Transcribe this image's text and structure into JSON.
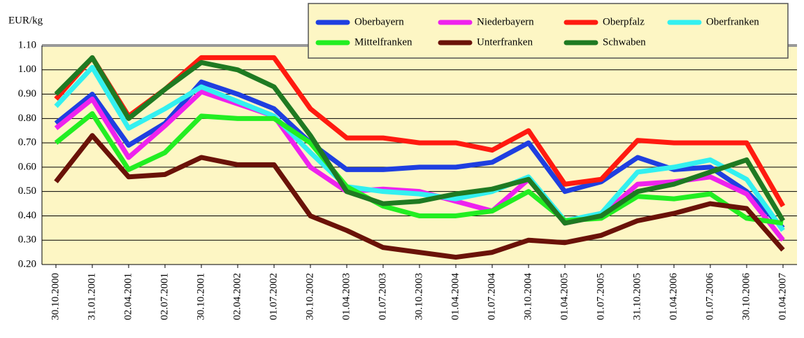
{
  "chart_data": {
    "type": "line",
    "ylabel": "EUR/kg",
    "categories": [
      "30.10.2000",
      "31.01.2001",
      "02.04.2001",
      "02.07.2001",
      "30.10.2001",
      "02.04.2002",
      "01.07.2002",
      "30.10.2002",
      "01.04.2003",
      "01.07.2003",
      "30.10.2003",
      "01.04.2004",
      "01.07.2004",
      "30.10.2004",
      "01.04.2005",
      "01.07.2005",
      "31.10.2005",
      "01.04.2006",
      "01.07.2006",
      "30.10.2006",
      "01.04.2007"
    ],
    "series": [
      {
        "name": "Oberbayern",
        "color": "#1f3fe0",
        "values": [
          0.78,
          0.9,
          0.69,
          0.78,
          0.95,
          0.9,
          0.84,
          0.7,
          0.59,
          0.59,
          0.6,
          0.6,
          0.62,
          0.7,
          0.5,
          0.54,
          0.64,
          0.59,
          0.6,
          0.5,
          0.35
        ]
      },
      {
        "name": "Niederbayern",
        "color": "#ee22ee",
        "values": [
          0.76,
          0.88,
          0.64,
          0.77,
          0.91,
          0.86,
          0.81,
          0.6,
          0.5,
          0.51,
          0.5,
          0.46,
          0.42,
          0.55,
          0.37,
          0.4,
          0.53,
          0.54,
          0.56,
          0.49,
          0.3
        ]
      },
      {
        "name": "Oberpfalz",
        "color": "#ff1a10",
        "values": [
          0.88,
          1.05,
          0.81,
          0.92,
          1.05,
          1.05,
          1.05,
          0.84,
          0.72,
          0.72,
          0.7,
          0.7,
          0.67,
          0.75,
          0.53,
          0.55,
          0.71,
          0.7,
          0.7,
          0.7,
          0.44
        ]
      },
      {
        "name": "Oberfranken",
        "color": "#33f0f0",
        "values": [
          0.85,
          1.01,
          0.76,
          0.84,
          0.93,
          0.87,
          0.81,
          0.66,
          0.52,
          0.5,
          0.49,
          0.47,
          0.5,
          0.56,
          0.38,
          0.41,
          0.58,
          0.6,
          0.63,
          0.55,
          0.34
        ]
      },
      {
        "name": "Mittelfranken",
        "color": "#22ee22",
        "values": [
          0.7,
          0.82,
          0.59,
          0.66,
          0.81,
          0.8,
          0.8,
          0.7,
          0.52,
          0.44,
          0.4,
          0.4,
          0.42,
          0.5,
          0.38,
          0.39,
          0.48,
          0.47,
          0.49,
          0.39,
          0.37
        ]
      },
      {
        "name": "Unterfranken",
        "color": "#6a1208",
        "values": [
          0.54,
          0.73,
          0.56,
          0.57,
          0.64,
          0.61,
          0.61,
          0.4,
          0.34,
          0.27,
          0.25,
          0.23,
          0.25,
          0.3,
          0.29,
          0.32,
          0.38,
          0.41,
          0.45,
          0.43,
          0.26
        ]
      },
      {
        "name": "Schwaben",
        "color": "#1f7a22",
        "values": [
          0.9,
          1.05,
          0.8,
          0.92,
          1.03,
          1.0,
          0.93,
          0.73,
          0.5,
          0.45,
          0.46,
          0.49,
          0.51,
          0.55,
          0.37,
          0.4,
          0.5,
          0.53,
          0.58,
          0.63,
          0.38
        ]
      }
    ],
    "ylim": [
      0.2,
      1.1
    ],
    "yticks": [
      {
        "value": 0.2,
        "label": "0.20"
      },
      {
        "value": 0.3,
        "label": "0.30"
      },
      {
        "value": 0.4,
        "label": "0.40"
      },
      {
        "value": 0.5,
        "label": "0.50"
      },
      {
        "value": 0.6,
        "label": "0.60"
      },
      {
        "value": 0.7,
        "label": "0.70"
      },
      {
        "value": 0.8,
        "label": "0.80"
      },
      {
        "value": 0.9,
        "label": "0.90"
      },
      {
        "value": 1.0,
        "label": "1.00"
      },
      {
        "value": 1.1,
        "label": "1.10"
      }
    ],
    "grid": true,
    "legend": "top-right"
  }
}
